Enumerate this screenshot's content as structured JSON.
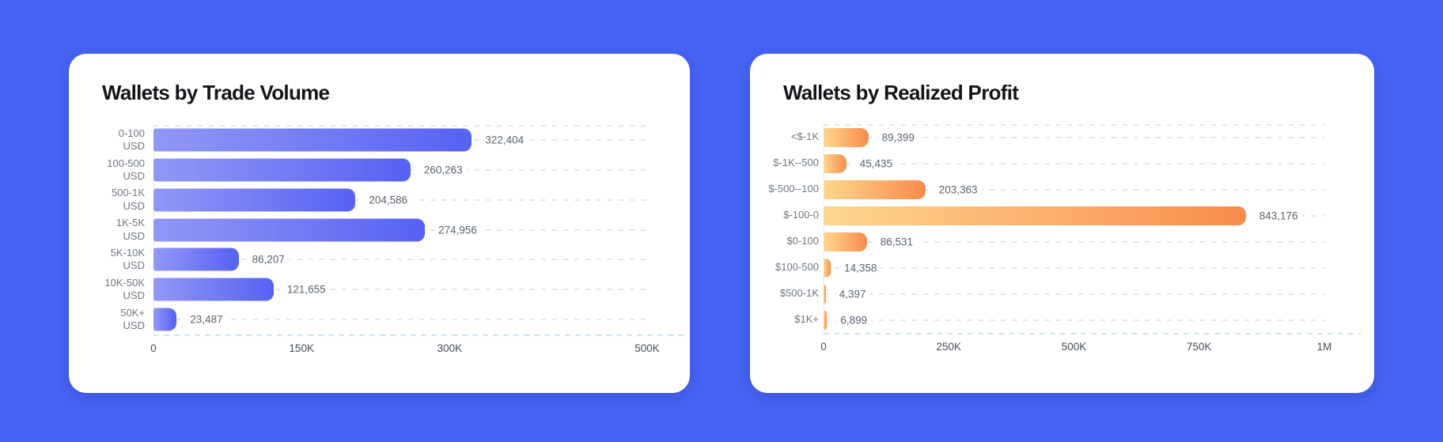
{
  "page": {
    "background_color": "#4764F6",
    "card_color": "#ffffff"
  },
  "chart_data": [
    {
      "type": "bar",
      "orientation": "horizontal",
      "title": "Wallets by Trade Volume",
      "categories": [
        "0-100\nUSD",
        "100-500\nUSD",
        "500-1K\nUSD",
        "1K-5K\nUSD",
        "5K-10K\nUSD",
        "10K-50K\nUSD",
        "50K+\nUSD"
      ],
      "values": [
        322404,
        260263,
        204586,
        274956,
        86207,
        121655,
        23487
      ],
      "value_labels": [
        "322,404",
        "260,263",
        "204,586",
        "274,956",
        "86,207",
        "121,655",
        "23,487"
      ],
      "x_ticks": [
        {
          "label": "0",
          "value": 0
        },
        {
          "label": "150K",
          "value": 150000
        },
        {
          "label": "300K",
          "value": 300000
        },
        {
          "label": "500K",
          "value": 500000
        }
      ],
      "xlim": [
        0,
        500000
      ],
      "grid": "dashed horizontal row lines",
      "legend_position": "none",
      "bar_gradient": [
        "#9298F6",
        "#5761F3"
      ]
    },
    {
      "type": "bar",
      "orientation": "horizontal",
      "title": "Wallets by Realized Profit",
      "categories": [
        "<$-1K",
        "$-1K--500",
        "$-500--100",
        "$-100-0",
        "$0-100",
        "$100-500",
        "$500-1K",
        "$1K+"
      ],
      "values": [
        89399,
        45435,
        203363,
        843176,
        86531,
        14358,
        4397,
        6899
      ],
      "value_labels": [
        "89,399",
        "45,435",
        "203,363",
        "843,176",
        "86,531",
        "14,358",
        "4,397",
        "6,899"
      ],
      "x_ticks": [
        {
          "label": "0",
          "value": 0
        },
        {
          "label": "250K",
          "value": 250000
        },
        {
          "label": "500K",
          "value": 500000
        },
        {
          "label": "750K",
          "value": 750000
        },
        {
          "label": "1M",
          "value": 1000000
        }
      ],
      "xlim": [
        0,
        1000000
      ],
      "grid": "dashed horizontal row lines",
      "legend_position": "none",
      "bar_gradient": [
        "#FFD78E",
        "#F98B4C"
      ]
    }
  ]
}
